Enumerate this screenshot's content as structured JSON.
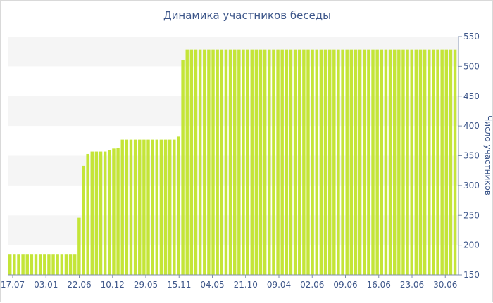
{
  "chart_data": {
    "type": "bar",
    "title": "Динамика участников беседы",
    "xlabel": "",
    "ylabel": "Число участников",
    "ylim": [
      150,
      550
    ],
    "yticks": [
      150,
      200,
      250,
      300,
      350,
      400,
      450,
      500,
      550
    ],
    "y_axis_side": "right",
    "xtick_labels": [
      "17.07",
      "03.01",
      "22.06",
      "10.12",
      "29.05",
      "15.11",
      "04.05",
      "21.10",
      "09.04",
      "02.06",
      "09.06",
      "16.06",
      "23.06",
      "30.06"
    ],
    "grid": "alternating horizontal bands",
    "bar_color": "#c4e538",
    "values": [
      184,
      184,
      184,
      184,
      184,
      184,
      184,
      184,
      184,
      184,
      184,
      184,
      184,
      184,
      184,
      184,
      246,
      333,
      353,
      357,
      357,
      357,
      357,
      360,
      362,
      363,
      377,
      377,
      377,
      377,
      377,
      377,
      377,
      377,
      377,
      377,
      377,
      377,
      377,
      382,
      511,
      528,
      528,
      528,
      528,
      528,
      528,
      528,
      528,
      528,
      528,
      528,
      528,
      528,
      528,
      528,
      528,
      528,
      528,
      528,
      528,
      528,
      528,
      528,
      528,
      528,
      528,
      528,
      528,
      528,
      528,
      528,
      528,
      528,
      528,
      528,
      528,
      528,
      528,
      528,
      528,
      528,
      528,
      528,
      528,
      528,
      528,
      528,
      528,
      528,
      528,
      528,
      528,
      528,
      528,
      528,
      528,
      528,
      528,
      528,
      528,
      528,
      528,
      528
    ]
  }
}
